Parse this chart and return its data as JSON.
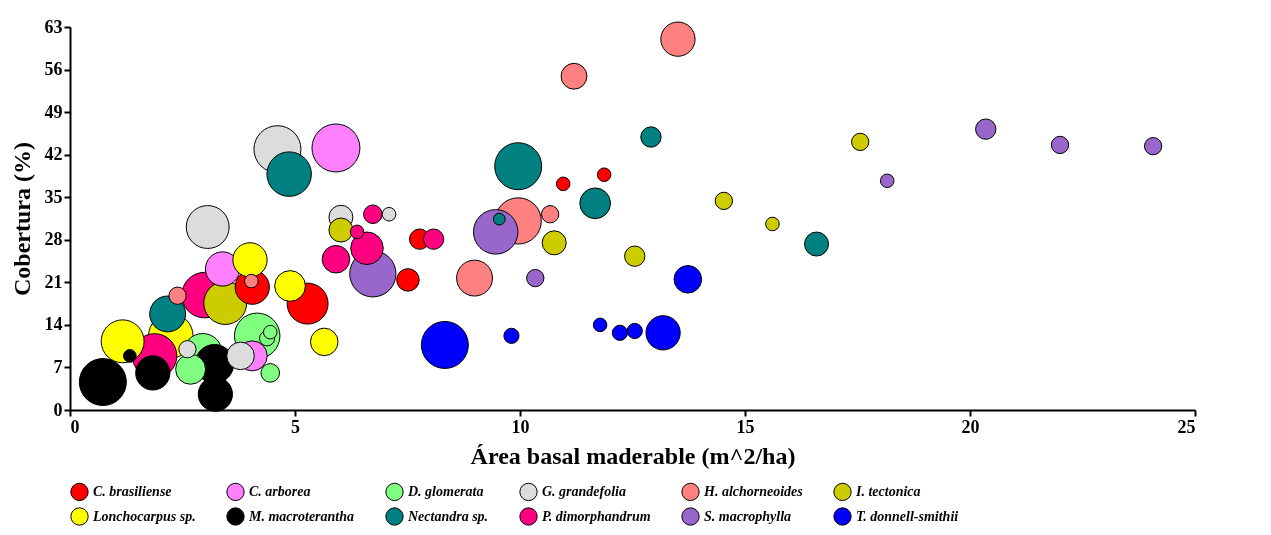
{
  "chart_data": {
    "type": "bubble",
    "xlabel": "Área basal maderable (m^2/ha)",
    "ylabel": "Cobertura (%)",
    "xlim": [
      0,
      25
    ],
    "xticks": [
      0,
      5,
      10,
      15,
      20,
      25
    ],
    "ylim": [
      0,
      63
    ],
    "yticks": [
      0,
      7,
      14,
      21,
      28,
      35,
      42,
      49,
      56,
      63
    ],
    "grid": false,
    "legend": "bottom",
    "series": [
      {
        "name": "C. brasiliense",
        "color": "#ff0000",
        "x": [
          10.96,
          11.87,
          7.51,
          7.77,
          5.28,
          4.05
        ],
        "values": [
          37.2,
          38.7,
          21.4,
          28.1,
          17.5,
          20.2
        ],
        "sizes": [
          0.08,
          0.08,
          0.22,
          0.18,
          0.73,
          0.51
        ]
      },
      {
        "name": "C. arborea",
        "color": "#ff80ff",
        "x": [
          5.91,
          3.39,
          4.05
        ],
        "values": [
          43.1,
          23.2,
          8.9
        ],
        "sizes": [
          1,
          0.51,
          0.39
        ]
      },
      {
        "name": "D. glomerata",
        "color": "#80ff80",
        "x": [
          4.45,
          4.16,
          2.95,
          2.68,
          4.45,
          4.38
        ],
        "values": [
          6.1,
          12.2,
          9.4,
          6.7,
          12.8,
          11.8
        ],
        "sizes": [
          0.15,
          0.9,
          0.65,
          0.39,
          0.08,
          0.1
        ]
      },
      {
        "name": "G. grandefolia",
        "color": "#dcdcdc",
        "x": [
          4.61,
          3.06,
          6.02,
          7.09,
          3.79,
          2.61
        ],
        "values": [
          42.9,
          30.1,
          31.7,
          32.2,
          8.9,
          10.0
        ],
        "sizes": [
          0.96,
          0.8,
          0.25,
          0.08,
          0.33,
          0.13
        ]
      },
      {
        "name": "H. alchorneoides",
        "color": "#ff8080",
        "x": [
          13.51,
          11.2,
          9.96,
          10.67,
          8.99,
          4.03,
          2.39
        ],
        "values": [
          61.0,
          54.9,
          31.1,
          32.2,
          21.7,
          21.2,
          18.8
        ],
        "sizes": [
          0.51,
          0.29,
          0.93,
          0.13,
          0.56,
          0.08,
          0.13
        ]
      },
      {
        "name": "I. tectonica",
        "color": "#cccc00",
        "x": [
          17.56,
          14.53,
          15.61,
          10.76,
          12.55,
          6.02,
          3.45
        ],
        "values": [
          44.1,
          34.4,
          30.6,
          27.5,
          25.3,
          29.6,
          17.6
        ],
        "sizes": [
          0.13,
          0.13,
          0.08,
          0.25,
          0.18,
          0.25,
          0.8
        ]
      },
      {
        "name": "Lonchocarpus sp.",
        "color": "#ffff00",
        "x": [
          4.0,
          4.89,
          5.65,
          1.17,
          2.24
        ],
        "values": [
          24.7,
          20.4,
          11.2,
          11.3,
          12.2
        ],
        "sizes": [
          0.51,
          0.41,
          0.33,
          0.8,
          0.86
        ]
      },
      {
        "name": "M. macroterantha",
        "color": "#000000",
        "x": [
          0.73,
          1.84,
          3.21,
          3.23,
          1.33
        ],
        "values": [
          4.6,
          6.1,
          7.6,
          2.6,
          8.9
        ],
        "sizes": [
          0.96,
          0.51,
          0.65,
          0.51,
          0.07
        ]
      },
      {
        "name": "Nectandra sp.",
        "color": "#008080",
        "x": [
          9.96,
          4.87,
          12.91,
          11.67,
          16.59,
          2.17,
          9.54
        ],
        "values": [
          40.1,
          38.8,
          44.9,
          34.0,
          27.3,
          15.8,
          31.4
        ],
        "sizes": [
          0.96,
          0.86,
          0.18,
          0.41,
          0.25,
          0.56,
          0.06
        ]
      },
      {
        "name": "P. dimorphandrum",
        "color": "#ff0080",
        "x": [
          2.99,
          1.88,
          6.6,
          5.91,
          6.73,
          6.38,
          8.08
        ],
        "values": [
          18.9,
          8.9,
          26.6,
          24.8,
          32.2,
          29.3,
          28.1
        ],
        "sizes": [
          0.9,
          0.86,
          0.46,
          0.33,
          0.15,
          0.08,
          0.18
        ]
      },
      {
        "name": "S. macrophylla",
        "color": "#9966cc",
        "x": [
          20.35,
          22.0,
          24.07,
          18.16,
          9.46,
          6.73,
          10.34
        ],
        "values": [
          46.2,
          43.6,
          43.4,
          37.7,
          29.3,
          22.4,
          21.7
        ],
        "sizes": [
          0.18,
          0.13,
          0.13,
          0.08,
          0.86,
          0.93,
          0.13
        ]
      },
      {
        "name": "T. donnell-smithii",
        "color": "#0000ff",
        "x": [
          8.33,
          9.81,
          11.78,
          12.22,
          12.55,
          13.18,
          13.73
        ],
        "values": [
          10.7,
          12.2,
          14.0,
          12.7,
          13.0,
          12.7,
          21.5
        ],
        "sizes": [
          0.96,
          0.1,
          0.08,
          0.1,
          0.1,
          0.51,
          0.33
        ]
      }
    ]
  }
}
